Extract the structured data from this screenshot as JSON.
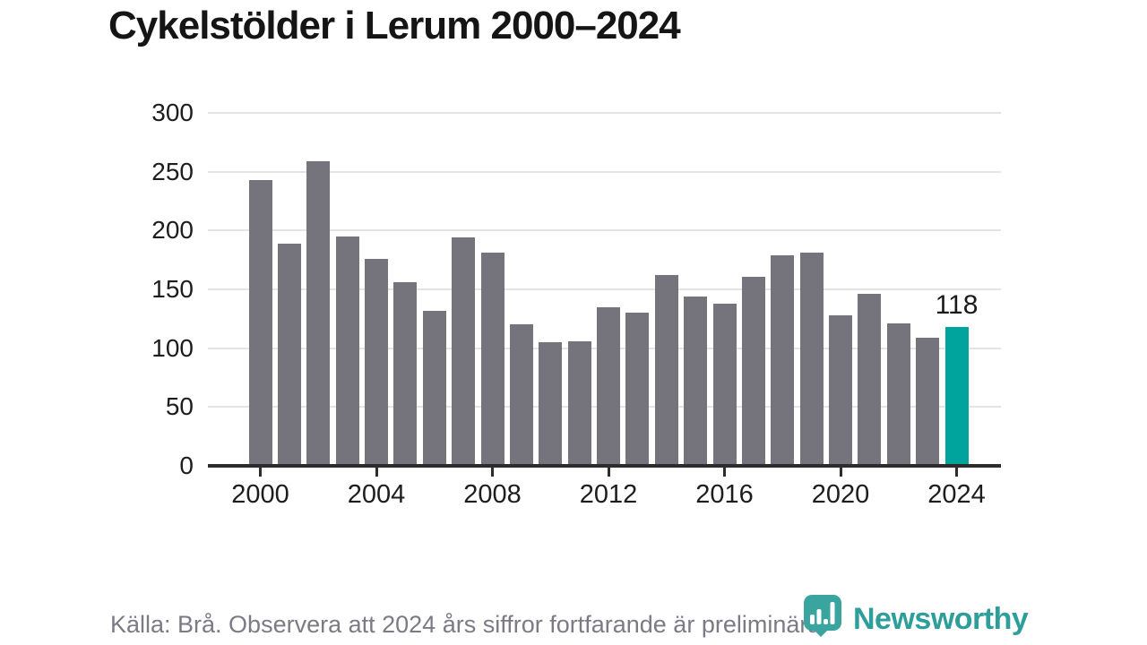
{
  "title": "Cykelstölder i Lerum 2000–2024",
  "footer": {
    "source_note": "Källa: Brå. Observera att 2024 års siffror fortfarande är preliminära."
  },
  "branding": {
    "logo_text": "Newsworthy",
    "logo_icon": "newsworthy-barchart-pin-icon"
  },
  "colors": {
    "bar": "#75737b",
    "highlight": "#00a49c",
    "gridline": "#e4e4e4",
    "axis": "#2d2d2d",
    "title_text": "#151515",
    "tick_text": "#1d1d1d",
    "footer_text": "#7b7a85",
    "logo_teal": "#2d9e99"
  },
  "chart_data": {
    "type": "bar",
    "title": "Cykelstölder i Lerum 2000–2024",
    "x": [
      2000,
      2001,
      2002,
      2003,
      2004,
      2005,
      2006,
      2007,
      2008,
      2009,
      2010,
      2011,
      2012,
      2013,
      2014,
      2015,
      2016,
      2017,
      2018,
      2019,
      2020,
      2021,
      2022,
      2023,
      2024
    ],
    "values": [
      243,
      189,
      259,
      195,
      176,
      156,
      132,
      194,
      181,
      120,
      105,
      106,
      135,
      130,
      162,
      144,
      138,
      161,
      179,
      181,
      128,
      146,
      121,
      109,
      118
    ],
    "highlight": {
      "year": 2024,
      "value": 118,
      "value_label": "118"
    },
    "yticks": [
      0,
      50,
      100,
      150,
      200,
      250,
      300
    ],
    "xticks": [
      2000,
      2004,
      2008,
      2012,
      2016,
      2020,
      2024
    ],
    "ylim": [
      0,
      300
    ],
    "xlabel": "",
    "ylabel": "",
    "grid": "horizontal",
    "legend": "none"
  }
}
